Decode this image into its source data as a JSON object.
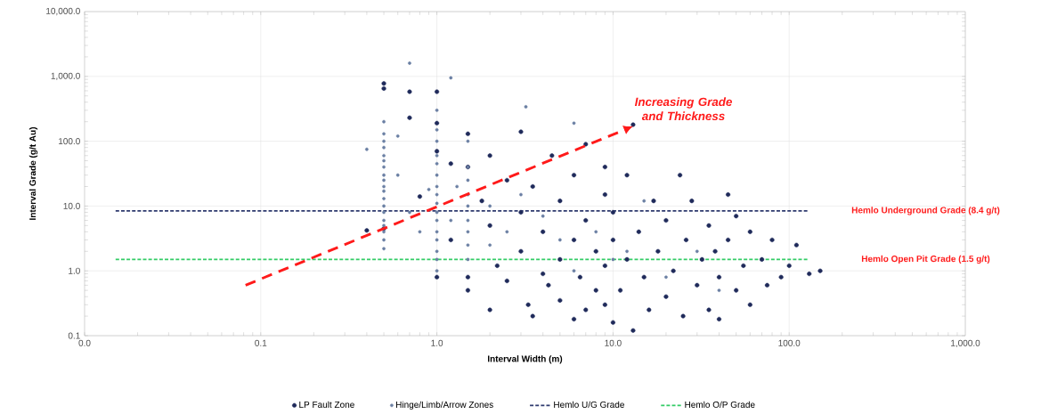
{
  "chart_data": {
    "type": "scatter",
    "xlabel": "Interval Width (m)",
    "ylabel": "Interval Grade (g/t Au)",
    "log": "xy",
    "grid": true,
    "legend": "bottom",
    "xlim": [
      0.01,
      1000
    ],
    "ylim": [
      0.1,
      10000
    ],
    "xticks": [
      {
        "value": 0.01,
        "label": "0.0"
      },
      {
        "value": 0.1,
        "label": "0.1"
      },
      {
        "value": 1,
        "label": "1.0"
      },
      {
        "value": 10,
        "label": "10.0"
      },
      {
        "value": 100,
        "label": "100.0"
      },
      {
        "value": 1000,
        "label": "1,000.0"
      }
    ],
    "yticks": [
      {
        "value": 0.1,
        "label": "0.1"
      },
      {
        "value": 1,
        "label": "1.0"
      },
      {
        "value": 10,
        "label": "10.0"
      },
      {
        "value": 100,
        "label": "100.0"
      },
      {
        "value": 1000,
        "label": "1,000.0"
      },
      {
        "value": 10000,
        "label": "10,000.0"
      }
    ],
    "series": [
      {
        "name": "LP Fault Zone",
        "color": "#1f2a5a",
        "x": [
          0.4,
          0.5,
          0.5,
          0.5,
          0.7,
          0.7,
          0.8,
          1.0,
          1.0,
          1.0,
          1.0,
          1.2,
          1.2,
          1.5,
          1.5,
          1.5,
          1.5,
          1.8,
          2.0,
          2.0,
          2.2,
          2.5,
          2.5,
          3,
          3,
          3,
          3.3,
          3.5,
          4,
          4,
          4.3,
          4.5,
          5,
          5,
          5,
          6,
          6,
          6.5,
          7,
          7,
          7,
          8,
          8,
          9,
          9,
          9,
          10,
          10,
          10,
          11,
          12,
          12,
          13,
          13,
          14,
          15,
          16,
          17,
          18,
          20,
          20,
          22,
          24,
          25,
          26,
          28,
          30,
          32,
          35,
          35,
          38,
          40,
          40,
          45,
          45,
          50,
          50,
          55,
          60,
          60,
          70,
          75,
          80,
          90,
          100,
          110,
          130,
          150,
          9,
          6,
          3.5,
          2
        ],
        "values": [
          4.2,
          780,
          650,
          4.5,
          580,
          230,
          14,
          580,
          190,
          70,
          0.8,
          45,
          3,
          130,
          40,
          0.8,
          0.5,
          12,
          60,
          5,
          1.2,
          25,
          0.7,
          140,
          8,
          2,
          0.3,
          20,
          4,
          0.9,
          0.6,
          60,
          12,
          1.5,
          0.35,
          30,
          3,
          0.8,
          90,
          6,
          0.25,
          2,
          0.5,
          15,
          40,
          1.2,
          0.16,
          3,
          8,
          0.5,
          30,
          1.5,
          0.12,
          180,
          4,
          0.8,
          0.25,
          12,
          2,
          0.4,
          6,
          1,
          30,
          0.2,
          3,
          12,
          0.6,
          1.5,
          0.25,
          5,
          2,
          0.18,
          0.8,
          15,
          3,
          0.5,
          7,
          1.2,
          0.3,
          4,
          1.5,
          0.6,
          3,
          0.8,
          1.2,
          2.5,
          0.9,
          1.0,
          0.3,
          0.18,
          0.2,
          0.25
        ]
      },
      {
        "name": "Hinge/Limb/Arrow Zones",
        "color": "#6a7fa3",
        "x": [
          0.5,
          0.5,
          0.5,
          0.5,
          0.5,
          0.5,
          0.5,
          0.5,
          0.5,
          0.5,
          0.5,
          0.5,
          0.5,
          0.5,
          0.5,
          0.5,
          0.5,
          0.5,
          0.5,
          1.0,
          1.0,
          1.0,
          1.0,
          1.0,
          1.0,
          1.0,
          1.0,
          1.0,
          1.0,
          1.0,
          1.0,
          1.0,
          1.0,
          1.0,
          1.0,
          1.5,
          1.5,
          1.5,
          1.5,
          1.5,
          1.5,
          1.5,
          1.5,
          1.5,
          0.4,
          0.6,
          0.6,
          0.7,
          0.7,
          0.8,
          0.9,
          1.2,
          1.2,
          1.3,
          2,
          2,
          2.5,
          3,
          3.2,
          4,
          5,
          6,
          6,
          8,
          10,
          12,
          15,
          20,
          30,
          40
        ],
        "values": [
          2.2,
          3,
          4,
          5,
          6,
          8,
          10,
          13,
          17,
          20,
          25,
          30,
          40,
          50,
          60,
          80,
          100,
          130,
          200,
          1.0,
          1.5,
          2,
          3,
          4,
          6,
          8,
          11,
          15,
          20,
          30,
          45,
          60,
          100,
          150,
          300,
          1.5,
          2.5,
          4,
          6,
          10,
          15,
          25,
          40,
          100,
          75,
          120,
          30,
          1600,
          8,
          4,
          18,
          950,
          6,
          20,
          10,
          2.5,
          4,
          15,
          340,
          7,
          3,
          190,
          1,
          4,
          1.5,
          2,
          12,
          0.8,
          2,
          0.5
        ]
      },
      {
        "name": "Hemlo U/G Grade",
        "type": "line",
        "line_style": "dashed",
        "color": "#2e3a6e",
        "x": [
          0.015,
          130
        ],
        "values": [
          8.4,
          8.4
        ]
      },
      {
        "name": "Hemlo O/P Grade",
        "type": "line",
        "line_style": "dashed",
        "color": "#33cc66",
        "x": [
          0.015,
          130
        ],
        "values": [
          1.5,
          1.5
        ]
      }
    ],
    "annotations": [
      "Increasing Grade and Thickness",
      "Hemlo Underground Grade (8.4 g/t)",
      "Hemlo Open Pit Grade (1.5 g/t)"
    ]
  }
}
